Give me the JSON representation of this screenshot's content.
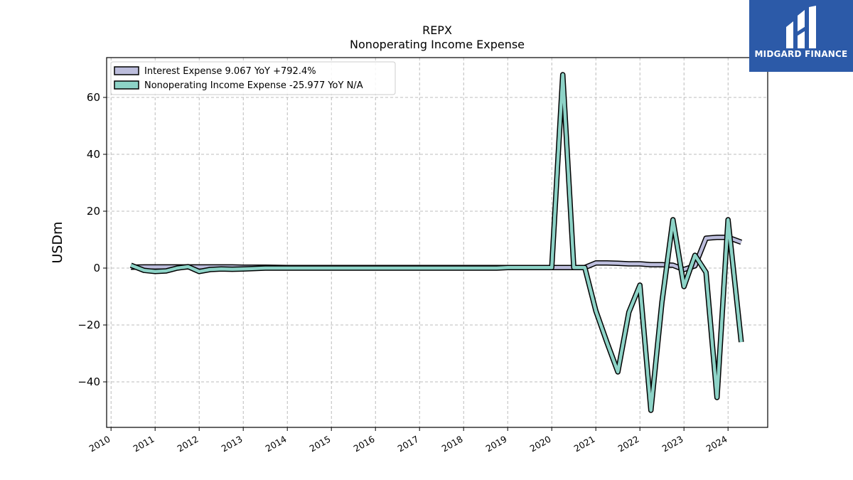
{
  "brand": {
    "name": "MIDGARD FINANCE",
    "logo_icon": "midgard-logo-icon",
    "bg_color": "#2c5aa8"
  },
  "chart_data": {
    "type": "line",
    "title": "REPX",
    "subtitle": "Nonoperating Income Expense",
    "ylabel": "USDm",
    "xlabel": "",
    "ylim": [
      -56,
      74
    ],
    "xlim": [
      2009.9,
      2024.9
    ],
    "yticks": [
      -40,
      -20,
      0,
      20,
      40,
      60
    ],
    "ytick_labels": [
      "−40",
      "−20",
      "0",
      "20",
      "40",
      "60"
    ],
    "xticks": [
      2010,
      2011,
      2012,
      2013,
      2014,
      2015,
      2016,
      2017,
      2018,
      2019,
      2020,
      2021,
      2022,
      2023,
      2024
    ],
    "xtick_labels": [
      "2010",
      "2011",
      "2012",
      "2013",
      "2014",
      "2015",
      "2016",
      "2017",
      "2018",
      "2019",
      "2020",
      "2021",
      "2022",
      "2023",
      "2024"
    ],
    "grid": true,
    "legend_position": "top-left",
    "series": [
      {
        "name": "Interest Expense",
        "legend_label": "Interest Expense  9.067 YoY +792.4%",
        "color": "#bcbddc",
        "x": [
          2010.45,
          2010.75,
          2011.0,
          2011.25,
          2011.5,
          2011.75,
          2012.0,
          2012.25,
          2012.5,
          2012.75,
          2013.0,
          2013.5,
          2014.0,
          2015.0,
          2016.0,
          2017.0,
          2018.0,
          2018.75,
          2019.0,
          2019.5,
          2020.0,
          2020.25,
          2020.5,
          2020.75,
          2021.0,
          2021.25,
          2021.5,
          2021.75,
          2022.0,
          2022.25,
          2022.5,
          2022.75,
          2023.0,
          2023.25,
          2023.5,
          2023.75,
          2024.0,
          2024.3
        ],
        "y": [
          0.3,
          0.4,
          0.4,
          0.4,
          0.4,
          0.4,
          0.4,
          0.4,
          0.4,
          0.4,
          0.3,
          0.3,
          0.2,
          0.2,
          0.2,
          0.2,
          0.2,
          0.2,
          0.2,
          0.2,
          0.2,
          0.2,
          0.2,
          0.2,
          1.8,
          1.8,
          1.7,
          1.5,
          1.5,
          1.2,
          1.2,
          1.0,
          -0.5,
          0.8,
          10.5,
          10.8,
          10.8,
          9.1
        ]
      },
      {
        "name": "Nonoperating Income Expense",
        "legend_label": "Nonoperating Income Expense  -25.977 YoY N/A",
        "color": "#8dd3c7",
        "x": [
          2010.45,
          2010.75,
          2011.0,
          2011.25,
          2011.5,
          2011.75,
          2012.0,
          2012.25,
          2012.5,
          2012.75,
          2013.0,
          2013.5,
          2014.0,
          2015.0,
          2016.0,
          2017.0,
          2018.0,
          2018.75,
          2019.0,
          2019.5,
          2020.0,
          2020.25,
          2020.5,
          2020.75,
          2021.0,
          2021.25,
          2021.5,
          2021.75,
          2022.0,
          2022.25,
          2022.5,
          2022.75,
          2023.0,
          2023.25,
          2023.5,
          2023.75,
          2024.0,
          2024.3
        ],
        "y": [
          1.0,
          -0.8,
          -1.2,
          -1.0,
          0.0,
          0.5,
          -1.2,
          -0.5,
          -0.3,
          -0.4,
          -0.3,
          0.0,
          0.0,
          0.0,
          0.0,
          0.0,
          0.0,
          0.0,
          0.2,
          0.2,
          0.2,
          68.0,
          0.2,
          0.2,
          -15.0,
          -26.0,
          -36.5,
          -15.5,
          -6.0,
          -50.0,
          -12.0,
          17.0,
          -6.5,
          4.5,
          -1.5,
          -45.5,
          17.0,
          -26.0
        ]
      }
    ]
  }
}
